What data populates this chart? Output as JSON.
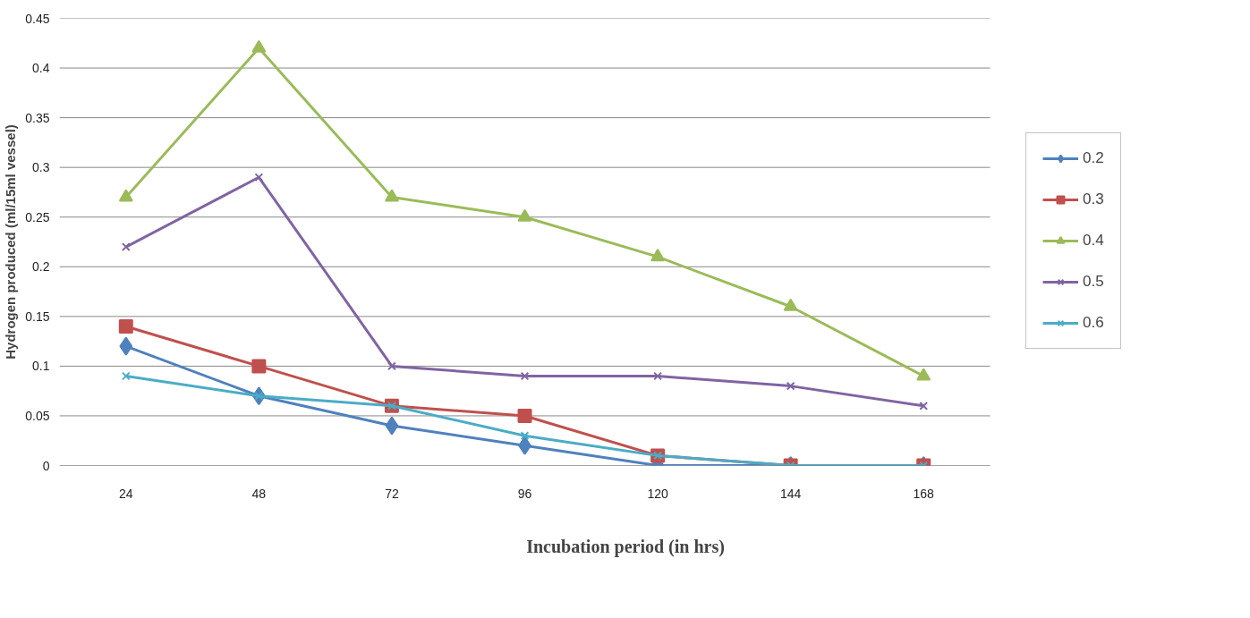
{
  "chart_data": {
    "type": "line",
    "xlabel": "Incubation period  (in hrs)",
    "ylabel": "Hydrogen produced (ml/15ml vessel)",
    "categories": [
      "24",
      "48",
      "72",
      "96",
      "120",
      "144",
      "168"
    ],
    "series": [
      {
        "name": "0.2",
        "color": "#4f81bd",
        "marker": "diamond",
        "values": [
          0.12,
          0.07,
          0.04,
          0.02,
          0,
          0,
          0
        ]
      },
      {
        "name": "0.3",
        "color": "#c0504d",
        "marker": "square",
        "values": [
          0.14,
          0.1,
          0.06,
          0.05,
          0.01,
          0,
          0
        ]
      },
      {
        "name": "0.4",
        "color": "#9bbb59",
        "marker": "triangle",
        "values": [
          0.27,
          0.42,
          0.27,
          0.25,
          0.21,
          0.16,
          0.09
        ]
      },
      {
        "name": "0.5",
        "color": "#8064a2",
        "marker": "cross",
        "values": [
          0.22,
          0.29,
          0.1,
          0.09,
          0.09,
          0.08,
          0.06
        ]
      },
      {
        "name": "0.6",
        "color": "#4bacc6",
        "marker": "cross",
        "values": [
          0.09,
          0.07,
          0.06,
          0.03,
          0.01,
          0,
          0
        ]
      }
    ],
    "ylim": [
      0,
      0.45
    ],
    "yticks": [
      0,
      0.05,
      0.1,
      0.15,
      0.2,
      0.25,
      0.3,
      0.35,
      0.4,
      0.45
    ],
    "grid": "y",
    "legend": "right",
    "line_style": "solid"
  }
}
